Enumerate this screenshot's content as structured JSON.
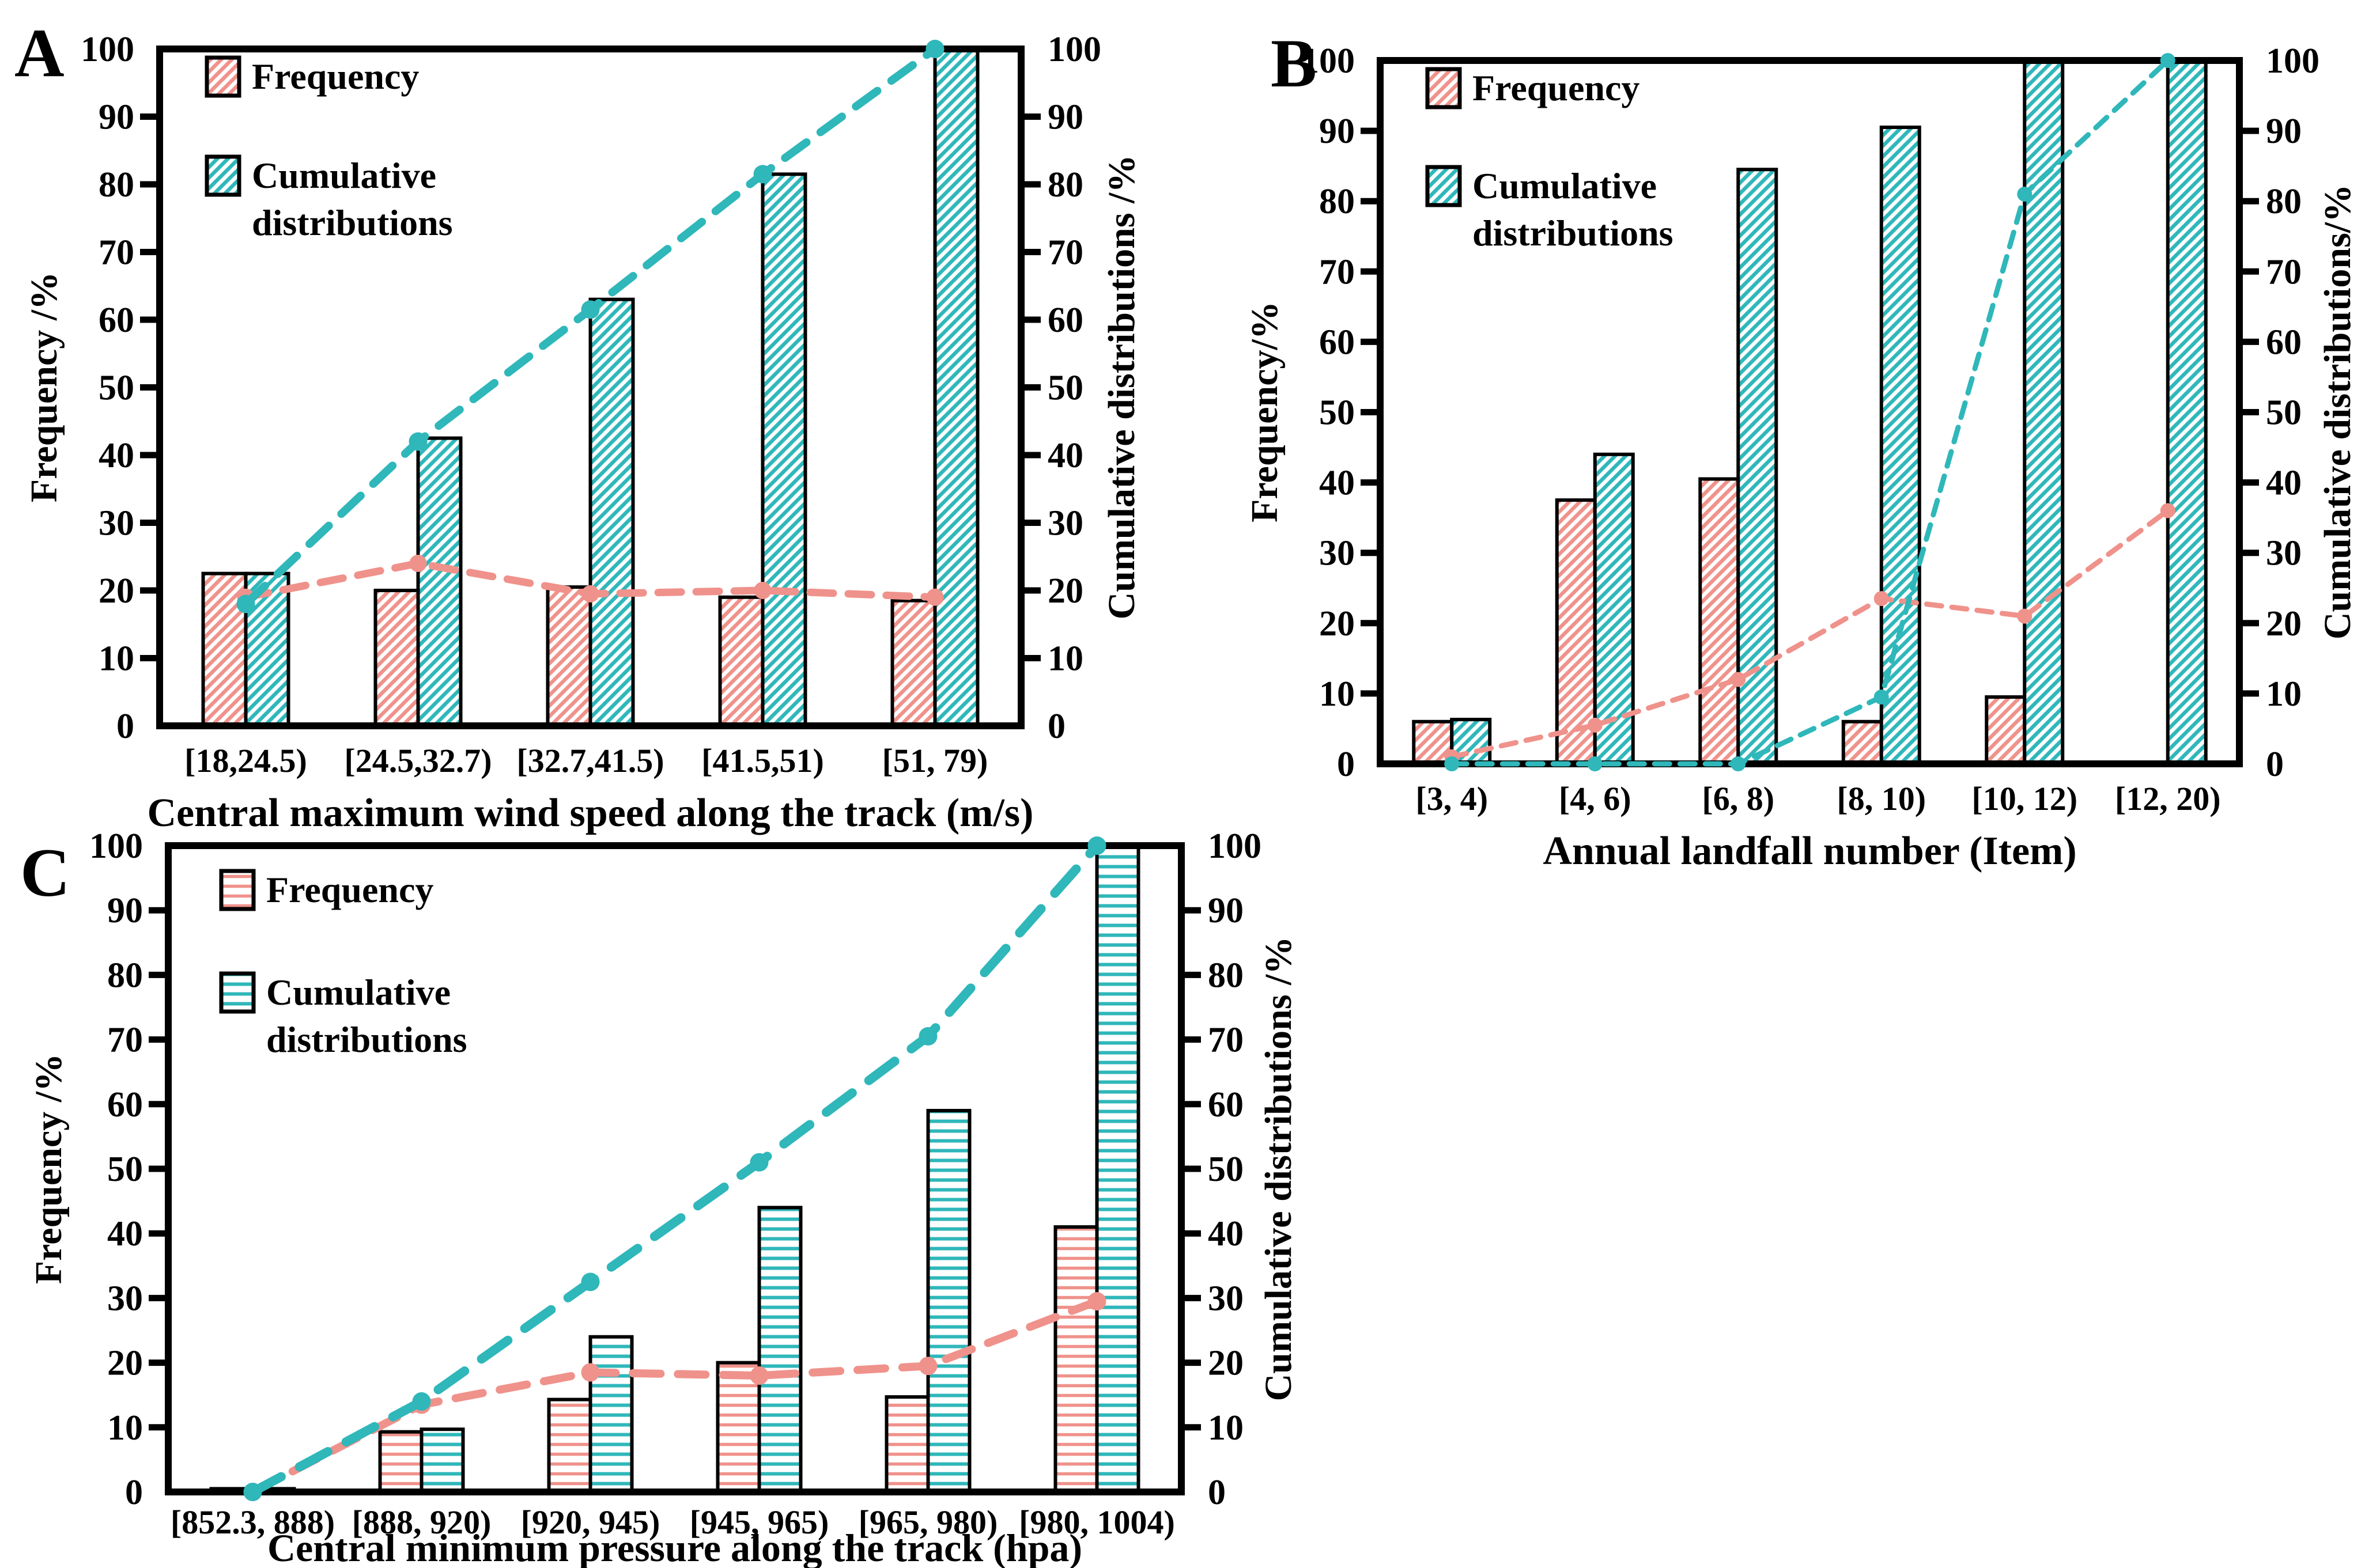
{
  "page": {
    "background": "#ffffff"
  },
  "colors": {
    "frequency": "#EF928B",
    "cumulative": "#2FB7BA",
    "axis": "#000000",
    "bar_fill": "#ffffff"
  },
  "chart_data": [
    {
      "panel": "A",
      "type": "bar+line",
      "xlabel": "Central maximum wind speed along the track (m/s)",
      "ylabel_left": "Frequency /%",
      "ylabel_right": "Cumulative distributions /%",
      "ylim": [
        0,
        100
      ],
      "ytick_step": 10,
      "grid": false,
      "hatch": "diagonal",
      "legend": [
        {
          "series": "frequency",
          "label_lines": [
            "Frequency"
          ]
        },
        {
          "series": "cumulative",
          "label_lines": [
            "Cumulative",
            "distributions"
          ]
        }
      ],
      "categories": [
        "[18,24.5)",
        "[24.5,32.7)",
        "[32.7,41.5)",
        "[41.5,51)",
        "[51, 79)"
      ],
      "series": [
        {
          "name": "Frequency",
          "type": "bar",
          "color_key": "frequency",
          "values": [
            22.5,
            20,
            20.5,
            19,
            18.5
          ]
        },
        {
          "name": "Cumulative distributions",
          "type": "bar",
          "color_key": "cumulative",
          "values": [
            22.5,
            42.5,
            63,
            81.5,
            100
          ]
        },
        {
          "name": "Frequency trend line",
          "type": "line",
          "color_key": "frequency",
          "values": [
            19,
            24,
            19.5,
            20,
            19
          ]
        },
        {
          "name": "Cumulative trend line",
          "type": "line",
          "color_key": "cumulative",
          "values": [
            18,
            42,
            61.5,
            81.5,
            100
          ]
        }
      ]
    },
    {
      "panel": "B",
      "type": "bar+line",
      "xlabel": "Annual landfall number (Item)",
      "ylabel_left": "Frequency/%",
      "ylabel_right": "Cumulative distributions/%",
      "ylim": [
        0,
        100
      ],
      "ytick_step": 10,
      "grid": false,
      "hatch": "diagonal",
      "legend": [
        {
          "series": "frequency",
          "label_lines": [
            "Frequency"
          ]
        },
        {
          "series": "cumulative",
          "label_lines": [
            "Cumulative",
            "distributions"
          ]
        }
      ],
      "categories": [
        "[3, 4)",
        "[4, 6)",
        "[6, 8)",
        "[8, 10)",
        "[10, 12)",
        "[12, 20)"
      ],
      "series": [
        {
          "name": "Frequency",
          "type": "bar",
          "color_key": "frequency",
          "values": [
            6,
            37.5,
            40.5,
            6,
            9.5,
            null
          ]
        },
        {
          "name": "Cumulative distributions",
          "type": "bar",
          "color_key": "cumulative",
          "values": [
            6.3,
            44,
            84.5,
            90.5,
            100,
            100
          ]
        },
        {
          "name": "Frequency trend line",
          "type": "line",
          "color_key": "frequency",
          "values": [
            1,
            5.5,
            12,
            23.5,
            21,
            36
          ]
        },
        {
          "name": "Cumulative trend line",
          "type": "line",
          "color_key": "cumulative",
          "values": [
            0,
            0,
            0,
            9.5,
            81,
            100
          ]
        }
      ]
    },
    {
      "panel": "C",
      "type": "bar+line",
      "xlabel": "Central minimum pressure along the track (hpa)",
      "ylabel_left": "Frequency /%",
      "ylabel_right": "Cumulative distributions /%",
      "ylim": [
        0,
        100
      ],
      "ytick_step": 10,
      "grid": false,
      "hatch": "horizontal",
      "legend": [
        {
          "series": "frequency",
          "label_lines": [
            "Frequency"
          ]
        },
        {
          "series": "cumulative",
          "label_lines": [
            "Cumulative",
            "distributions"
          ]
        }
      ],
      "categories": [
        "[852.3, 888)",
        "[888, 920)",
        "[920, 945)",
        "[945, 965)",
        "[965, 980)",
        "[980, 1004)"
      ],
      "series": [
        {
          "name": "Frequency",
          "type": "bar",
          "color_key": "frequency",
          "values": [
            0.5,
            9.3,
            14.3,
            20,
            14.7,
            41
          ]
        },
        {
          "name": "Cumulative distributions",
          "type": "bar",
          "color_key": "cumulative",
          "values": [
            0.5,
            9.7,
            24,
            44,
            59,
            100
          ]
        },
        {
          "name": "Frequency trend line",
          "type": "line",
          "color_key": "frequency",
          "values": [
            0,
            13.5,
            18.5,
            18,
            19.5,
            29.5
          ]
        },
        {
          "name": "Cumulative trend line",
          "type": "line",
          "color_key": "cumulative",
          "values": [
            0,
            14,
            32.5,
            51,
            70.5,
            100
          ]
        }
      ]
    }
  ]
}
